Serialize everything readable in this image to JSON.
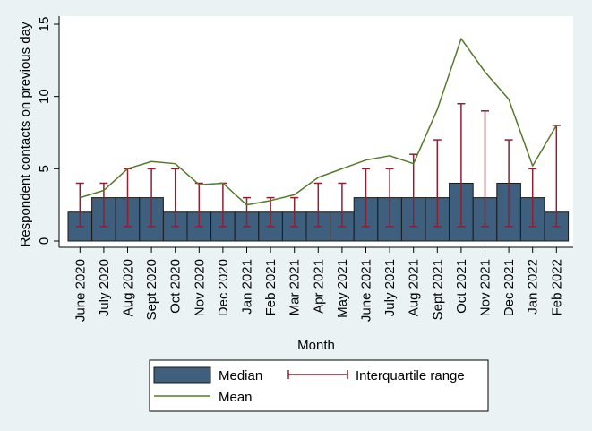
{
  "chart_data": {
    "type": "bar",
    "xlabel": "Month",
    "ylabel": "Respondent contacts on previous day",
    "ylim": [
      0,
      15
    ],
    "yticks": [
      0,
      5,
      10,
      15
    ],
    "grid": false,
    "legend_placement": "bottom",
    "categories": [
      "June 2020",
      "July 2020",
      "Aug 2020",
      "Sept 2020",
      "Oct 2020",
      "Nov 2020",
      "Dec 2020",
      "Jan 2021",
      "Feb 2021",
      "Mar 2021",
      "Apr 2021",
      "May 2021",
      "June 2021",
      "July 2021",
      "Aug 2021",
      "Sept 2021",
      "Oct 2021",
      "Nov 2021",
      "Dec 2021",
      "Jan 2022",
      "Feb 2022"
    ],
    "series": [
      {
        "name": "Median",
        "type": "bar",
        "values": [
          2,
          3,
          3,
          3,
          2,
          2,
          2,
          2,
          2,
          2,
          2,
          2,
          3,
          3,
          3,
          3,
          4,
          3,
          4,
          3,
          2
        ]
      },
      {
        "name": "Interquartile range",
        "type": "errorbar",
        "low": [
          1,
          1,
          1,
          1,
          1,
          1,
          1,
          1,
          1,
          1,
          1,
          1,
          1,
          1,
          1,
          1,
          1,
          1,
          1,
          1,
          1
        ],
        "high": [
          4,
          4,
          5,
          5,
          5,
          4,
          4,
          3,
          3,
          3,
          4,
          4,
          5,
          5,
          6,
          7,
          9.5,
          9,
          7,
          5,
          8
        ]
      },
      {
        "name": "Mean",
        "type": "line",
        "values": [
          3.0,
          3.5,
          5.0,
          5.5,
          5.35,
          3.9,
          4.0,
          2.5,
          2.8,
          3.2,
          4.4,
          5.0,
          5.6,
          5.9,
          5.35,
          9.1,
          14.0,
          11.7,
          9.8,
          5.2,
          8.0
        ]
      }
    ],
    "colors": {
      "bar_fill": "#3e5f7e",
      "bar_stroke": "#1a1a1a",
      "errorbar": "#8e2032",
      "mean_line": "#56782a",
      "plot_bg": "#ffffff",
      "page_bg": "#eaf2f3"
    }
  }
}
